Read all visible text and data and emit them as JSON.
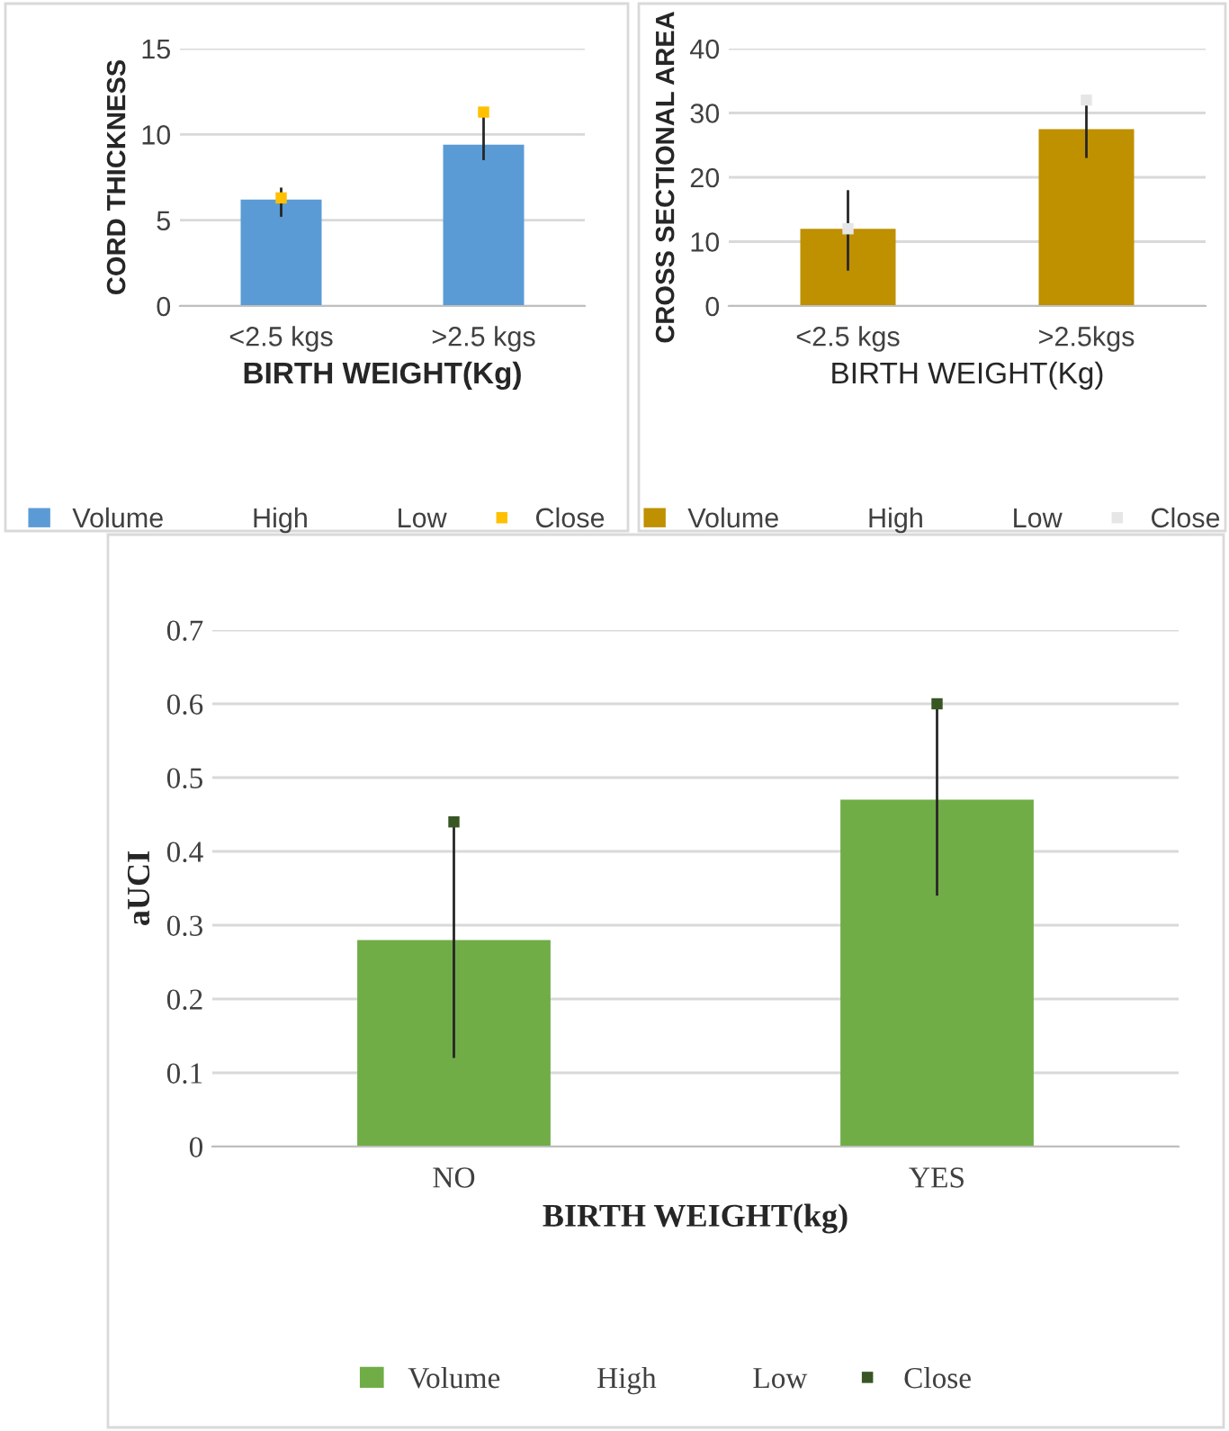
{
  "chart_data": [
    {
      "type": "bar",
      "categories": [
        "<2.5 kgs",
        ">2.5 kgs"
      ],
      "xlabel": "BIRTH WEIGHT(Kg)",
      "ylabel": "CORD THICKNESS",
      "ylim": [
        0,
        15
      ],
      "yticks": [
        0,
        5,
        10,
        15
      ],
      "grid": "y",
      "legend": "bottom",
      "series": [
        {
          "name": "Volume",
          "color": "#5b9bd5",
          "values": [
            6.2,
            9.4
          ],
          "errors": [
            [
              5.2,
              6.9
            ],
            [
              8.5,
              11.3
            ]
          ]
        },
        {
          "name": "High",
          "values": [
            null,
            null
          ]
        },
        {
          "name": "Low",
          "values": [
            null,
            null
          ]
        },
        {
          "name": "Close",
          "type": "scatter",
          "marker": "square",
          "color": "#ffc000",
          "values": [
            6.3,
            11.3
          ]
        }
      ]
    },
    {
      "type": "bar",
      "categories": [
        "<2.5 kgs",
        ">2.5kgs"
      ],
      "xlabel": "BIRTH WEIGHT(Kg)",
      "ylabel": "CROSS SECTIONAL AREA",
      "ylim": [
        0,
        40
      ],
      "yticks": [
        0,
        10,
        20,
        30,
        40
      ],
      "grid": "y",
      "legend": "bottom",
      "series": [
        {
          "name": "Volume",
          "color": "#bf9000",
          "values": [
            12,
            27.5
          ],
          "errors": [
            [
              5.5,
              18
            ],
            [
              23,
              32
            ]
          ]
        },
        {
          "name": "High",
          "values": [
            null,
            null
          ]
        },
        {
          "name": "Low",
          "values": [
            null,
            null
          ]
        },
        {
          "name": "Close",
          "type": "scatter",
          "marker": "square",
          "color": "#e7e6e6",
          "values": [
            12,
            32
          ]
        }
      ]
    },
    {
      "type": "bar",
      "categories": [
        "NO",
        "YES"
      ],
      "xlabel": "BIRTH WEIGHT(kg)",
      "ylabel": "aUCI",
      "ylim": [
        0,
        0.7
      ],
      "yticks": [
        0,
        0.1,
        0.2,
        0.3,
        0.4,
        0.5,
        0.6,
        0.7
      ],
      "grid": "y",
      "legend": "bottom",
      "series": [
        {
          "name": "Volume",
          "color": "#70ad47",
          "values": [
            0.28,
            0.47
          ],
          "errors": [
            [
              0.12,
              0.44
            ],
            [
              0.34,
              0.6
            ]
          ]
        },
        {
          "name": "High",
          "values": [
            null,
            null
          ]
        },
        {
          "name": "Low",
          "values": [
            null,
            null
          ]
        },
        {
          "name": "Close",
          "type": "scatter",
          "marker": "square",
          "color": "#375623",
          "values": [
            0.44,
            0.6
          ]
        }
      ]
    }
  ]
}
